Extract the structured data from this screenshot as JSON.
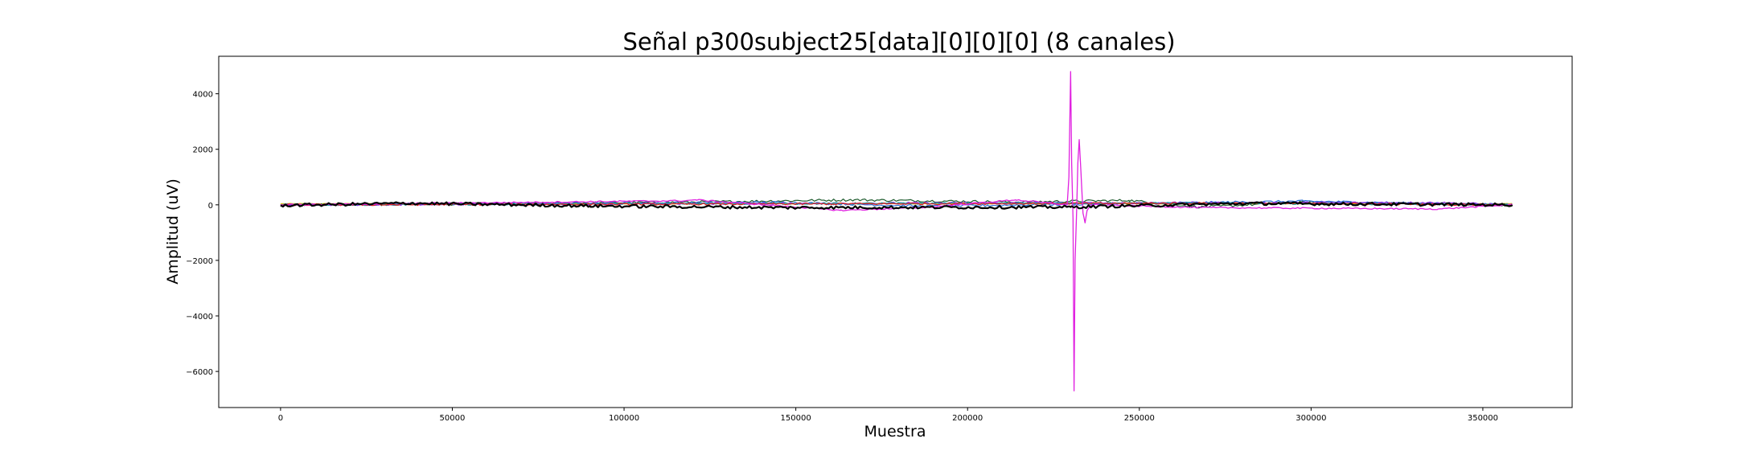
{
  "chart_data": {
    "type": "line",
    "title": "Señal p300subject25[data][0][0][0] (8 canales)",
    "xlabel": "Muestra",
    "ylabel": "Amplitud (uV)",
    "xlim": [
      -18000,
      376000
    ],
    "ylim": [
      -7300,
      5350
    ],
    "xticks": [
      0,
      50000,
      100000,
      150000,
      200000,
      250000,
      300000,
      350000
    ],
    "xtick_labels": [
      "0",
      "50000",
      "100000",
      "150000",
      "200000",
      "250000",
      "300000",
      "350000"
    ],
    "yticks": [
      -6000,
      -4000,
      -2000,
      0,
      2000,
      4000
    ],
    "ytick_labels": [
      "−6000",
      "−4000",
      "−2000",
      "0",
      "2000",
      "4000"
    ],
    "grid": false,
    "n_samples": 358500,
    "series": [
      {
        "color": "#d8c21a",
        "values": [
          [
            0,
            40
          ],
          [
            358500,
            40
          ]
        ]
      },
      {
        "color": "#1f5c2e",
        "values": [
          [
            0,
            0
          ],
          [
            55000,
            30
          ],
          [
            120000,
            100
          ],
          [
            167000,
            180
          ],
          [
            214000,
            100
          ],
          [
            247000,
            160
          ],
          [
            268000,
            -80
          ],
          [
            297000,
            90
          ],
          [
            358500,
            0
          ]
        ]
      },
      {
        "color": "#2a6fd6",
        "values": [
          [
            0,
            0
          ],
          [
            146000,
            90
          ],
          [
            188000,
            -50
          ],
          [
            298000,
            130
          ],
          [
            358500,
            0
          ]
        ]
      },
      {
        "color": "#8a2be2",
        "values": [
          [
            0,
            0
          ],
          [
            168000,
            60
          ],
          [
            337000,
            80
          ],
          [
            358500,
            0
          ]
        ]
      },
      {
        "color": "#20a0a0",
        "values": [
          [
            0,
            0
          ],
          [
            99000,
            40
          ],
          [
            267000,
            60
          ],
          [
            358500,
            0
          ]
        ]
      },
      {
        "color": "#e02020",
        "values": [
          [
            0,
            0
          ],
          [
            279000,
            60
          ],
          [
            358500,
            0
          ]
        ]
      },
      {
        "color": "#e020e0",
        "values": [
          [
            0,
            0
          ],
          [
            118000,
            150
          ],
          [
            121000,
            180
          ],
          [
            163000,
            -200
          ],
          [
            187000,
            -100
          ],
          [
            214000,
            180
          ],
          [
            229000,
            0
          ],
          [
            229500,
            1000
          ],
          [
            230000,
            4800
          ],
          [
            230300,
            1500
          ],
          [
            230700,
            -500
          ],
          [
            231000,
            -6700
          ],
          [
            231300,
            -2000
          ],
          [
            231800,
            0
          ],
          [
            232100,
            1500
          ],
          [
            232500,
            2350
          ],
          [
            233000,
            1200
          ],
          [
            233600,
            -300
          ],
          [
            234200,
            -650
          ],
          [
            234800,
            -200
          ],
          [
            236000,
            0
          ],
          [
            268000,
            -100
          ],
          [
            337000,
            -150
          ],
          [
            358500,
            0
          ]
        ]
      },
      {
        "color": "#000000",
        "values": [
          [
            0,
            -20
          ],
          [
            38000,
            60
          ],
          [
            90000,
            -40
          ],
          [
            148000,
            -100
          ],
          [
            230000,
            -80
          ],
          [
            281000,
            50
          ],
          [
            358500,
            0
          ]
        ]
      }
    ]
  }
}
